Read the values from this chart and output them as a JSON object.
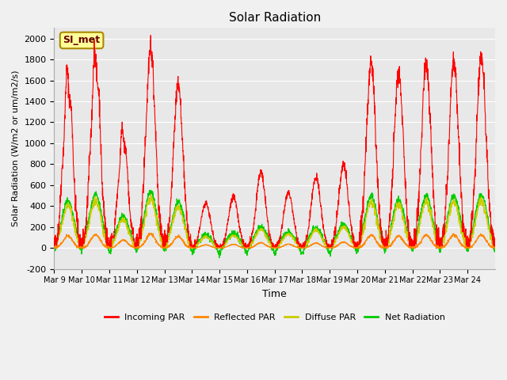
{
  "title": "Solar Radiation",
  "xlabel": "Time",
  "ylabel": "Solar Radiation (W/m2 or um/m2/s)",
  "ylim": [
    -200,
    2100
  ],
  "yticks": [
    -200,
    0,
    200,
    400,
    600,
    800,
    1000,
    1200,
    1400,
    1600,
    1800,
    2000
  ],
  "x_labels": [
    "Mar 9",
    "Mar 10",
    "Mar 11",
    "Mar 12",
    "Mar 13",
    "Mar 14",
    "Mar 15",
    "Mar 16",
    "Mar 17",
    "Mar 18",
    "Mar 19",
    "Mar 20",
    "Mar 21",
    "Mar 22",
    "Mar 23",
    "Mar 24"
  ],
  "annotation_text": "SI_met",
  "annotation_bg": "#ffff99",
  "annotation_border": "#aa8800",
  "colors": {
    "incoming": "#ff0000",
    "reflected": "#ff8800",
    "diffuse": "#cccc00",
    "net": "#00cc00"
  },
  "legend_labels": [
    "Incoming PAR",
    "Reflected PAR",
    "Diffuse PAR",
    "Net Radiation"
  ],
  "bg_color": "#e8e8e8",
  "n_days": 16,
  "points_per_day": 144,
  "incoming_peaks": [
    1620,
    1820,
    1080,
    1920,
    1570,
    430,
    490,
    720,
    530,
    680,
    800,
    1770,
    1650,
    1760,
    1780,
    1810
  ]
}
